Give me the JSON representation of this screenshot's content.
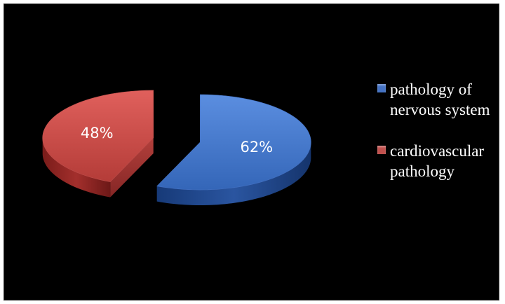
{
  "chart_data": {
    "type": "pie",
    "title": "",
    "categories": [
      "pathology of nervous system",
      "cardiovascular pathology"
    ],
    "values": [
      62,
      48
    ],
    "labels": [
      "62%",
      "48%"
    ],
    "colors": [
      "#4472c4",
      "#c0504d"
    ],
    "legend_position": "right",
    "exploded": true,
    "style": "3d"
  },
  "legend": {
    "items": [
      {
        "label": "pathology of nervous system",
        "color": "#4472c4"
      },
      {
        "label": "cardiovascular pathology",
        "color": "#c0504d"
      }
    ]
  }
}
